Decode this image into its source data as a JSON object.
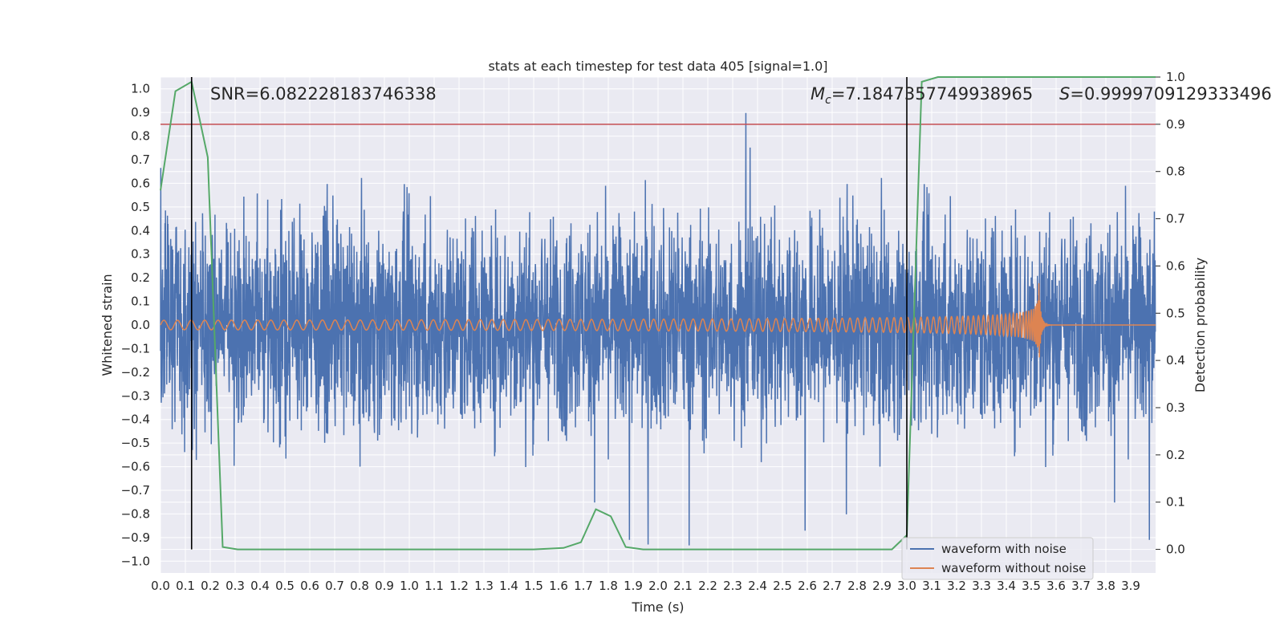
{
  "chart_data": {
    "type": "line",
    "title": "stats at each timestep for test data 405 [signal=1.0]",
    "xlabel": "Time (s)",
    "ylabel": "Whitened strain",
    "y2label": "Detection probability",
    "xlim": [
      0.0,
      4.0
    ],
    "ylim": [
      -1.05,
      1.05
    ],
    "y2lim": [
      -0.05,
      1.0
    ],
    "x_ticks": [
      "0.0",
      "0.1",
      "0.2",
      "0.3",
      "0.4",
      "0.5",
      "0.6",
      "0.7",
      "0.8",
      "0.9",
      "1.0",
      "1.1",
      "1.2",
      "1.3",
      "1.4",
      "1.5",
      "1.6",
      "1.7",
      "1.8",
      "1.9",
      "2.0",
      "2.1",
      "2.2",
      "2.3",
      "2.4",
      "2.5",
      "2.6",
      "2.7",
      "2.8",
      "2.9",
      "3.0",
      "3.1",
      "3.2",
      "3.3",
      "3.4",
      "3.5",
      "3.6",
      "3.7",
      "3.8",
      "3.9"
    ],
    "y_ticks": [
      "1.0",
      "0.9",
      "0.8",
      "0.7",
      "0.6",
      "0.5",
      "0.4",
      "0.3",
      "0.2",
      "0.1",
      "0.0",
      "−0.1",
      "−0.2",
      "−0.3",
      "−0.4",
      "−0.5",
      "−0.6",
      "−0.7",
      "−0.8",
      "−0.9",
      "−1.0"
    ],
    "y2_ticks": [
      "1.0",
      "0.9",
      "0.8",
      "0.7",
      "0.6",
      "0.5",
      "0.4",
      "0.3",
      "0.2",
      "0.1",
      "0.0"
    ],
    "annotations": {
      "snr": "SNR=6.082228183746338",
      "mc_symbol": "M",
      "mc_sub": "c",
      "mc_value": "=7.1847357749938965",
      "s_symbol": "S",
      "s_value": "=0.9999709129333496"
    },
    "threshold": {
      "axis": "y2",
      "value": 0.9,
      "color": "#c44e52"
    },
    "vertical_lines": [
      0.125,
      3.0
    ],
    "series": [
      {
        "name": "waveform with noise",
        "color": "#4c72b0",
        "kind": "noise",
        "amplitude_typical": 0.4,
        "amplitude_peak": 1.0
      },
      {
        "name": "waveform without noise",
        "color": "#dd8452",
        "kind": "chirp",
        "start_amplitude": 0.02,
        "peak_time": 3.53,
        "peak_amplitude": 0.2
      },
      {
        "name": "detection probability",
        "color": "#55a868",
        "axis": "y2",
        "x": [
          0.0,
          0.06,
          0.125,
          0.19,
          0.25,
          0.31,
          0.5,
          1.0,
          1.5,
          1.62,
          1.69,
          1.75,
          1.81,
          1.87,
          1.94,
          2.5,
          2.94,
          3.0,
          3.06,
          3.125,
          3.5,
          4.0
        ],
        "values": [
          0.76,
          0.97,
          0.99,
          0.83,
          0.005,
          0.0,
          0.0,
          0.0,
          0.0,
          0.003,
          0.015,
          0.085,
          0.07,
          0.005,
          0.0,
          0.0,
          0.0,
          0.03,
          0.99,
          1.0,
          1.0,
          1.0
        ]
      }
    ],
    "legend": {
      "position": "lower-right",
      "items": [
        "waveform with noise",
        "waveform without noise"
      ]
    }
  }
}
